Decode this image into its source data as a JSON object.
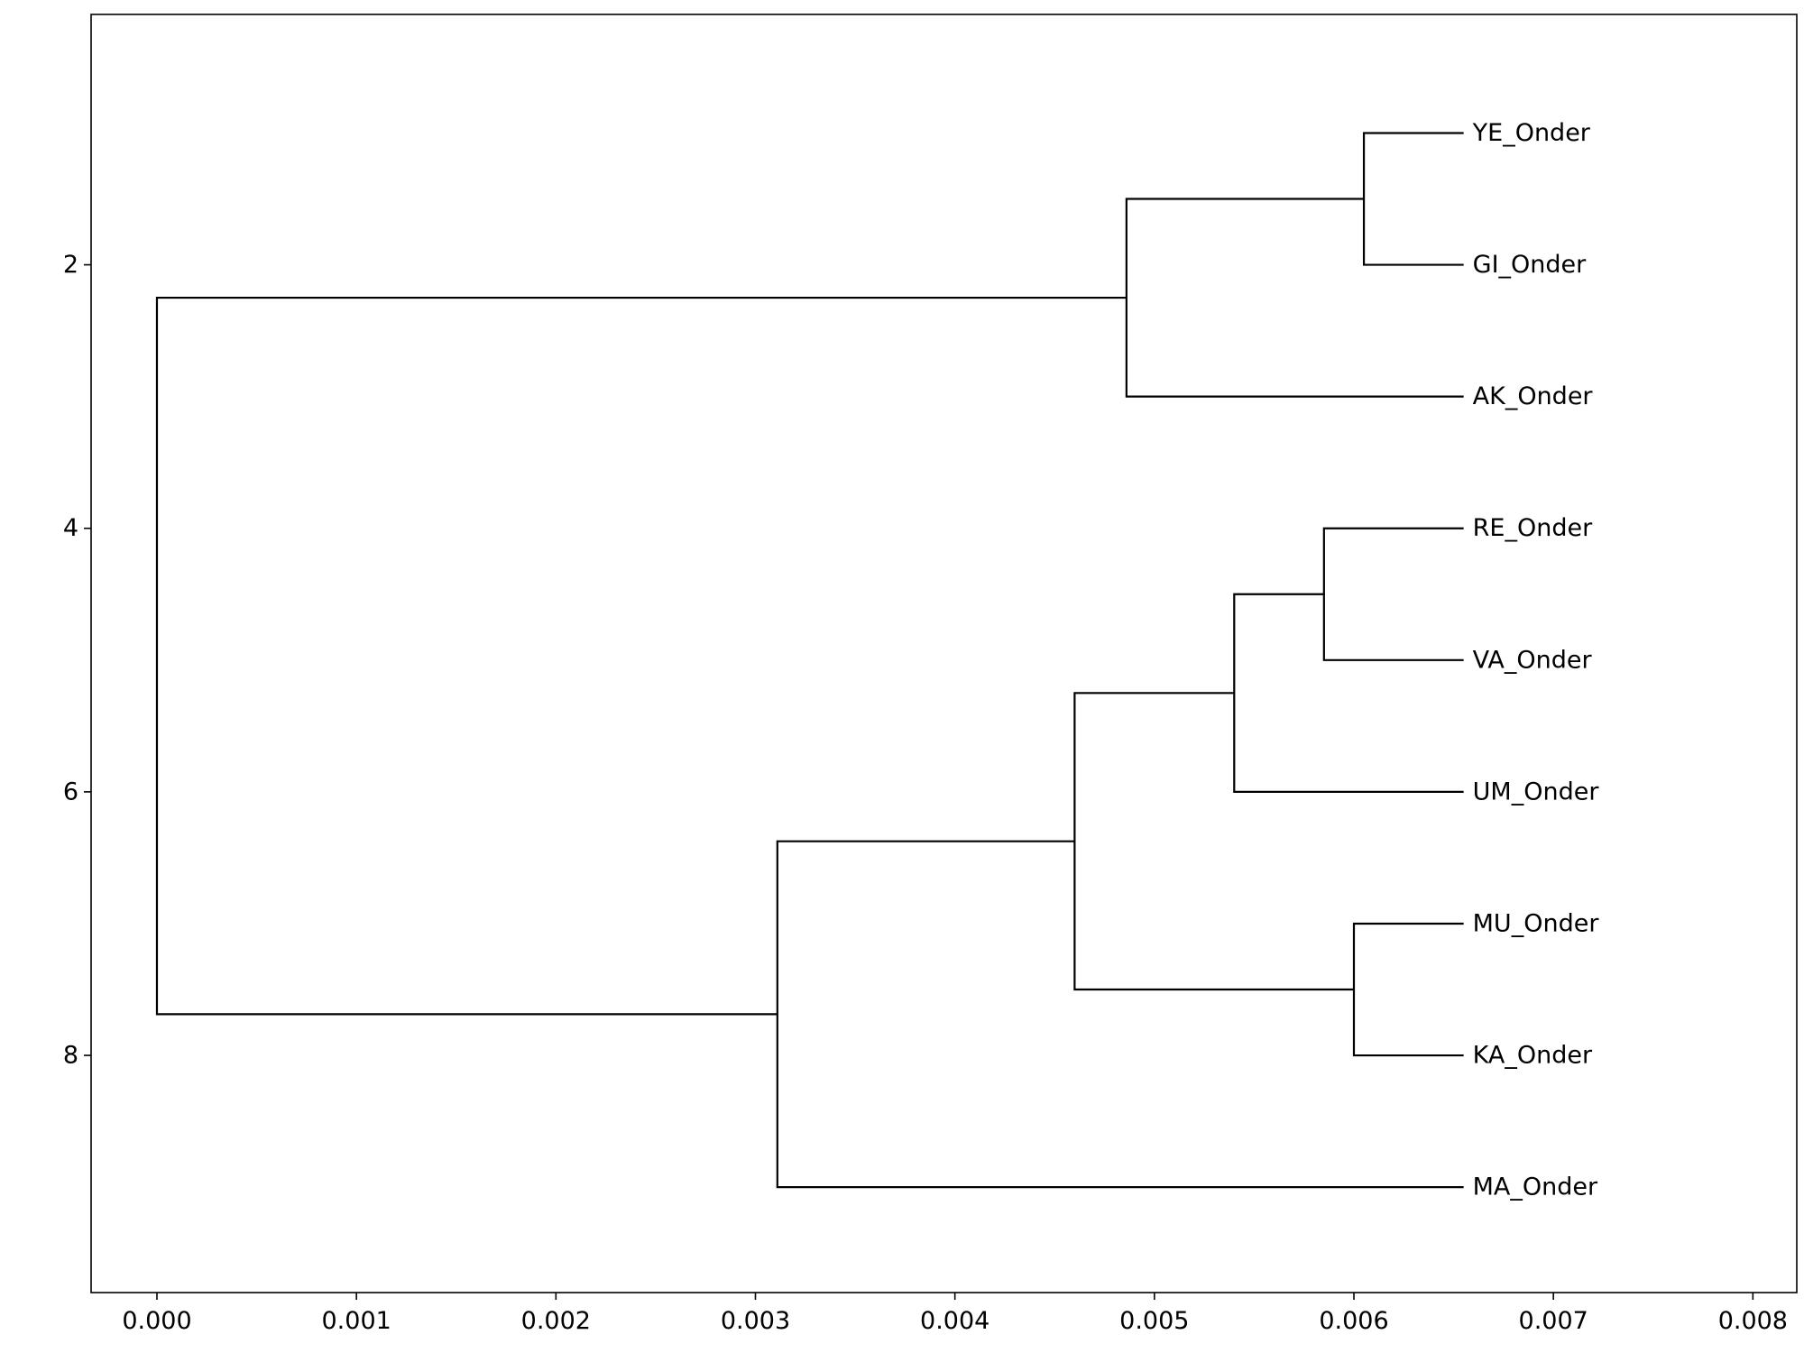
{
  "chart_data": {
    "type": "dendrogram",
    "orientation": "horizontal",
    "title": "",
    "xlabel": "",
    "ylabel": "",
    "xlim": [
      -0.00033,
      0.00822
    ],
    "ylim": [
      9.8,
      0.1
    ],
    "xticks": [
      0.0,
      0.001,
      0.002,
      0.003,
      0.004,
      0.005,
      0.006,
      0.007,
      0.008
    ],
    "xtick_labels": [
      "0.000",
      "0.001",
      "0.002",
      "0.003",
      "0.004",
      "0.005",
      "0.006",
      "0.007",
      "0.008"
    ],
    "yticks": [
      2,
      4,
      6,
      8
    ],
    "ytick_labels": [
      "2",
      "4",
      "6",
      "8"
    ],
    "leaf_tip_x": 0.00655,
    "leaves": [
      {
        "label": "YE_Onder",
        "y": 1
      },
      {
        "label": "GI_Onder",
        "y": 2
      },
      {
        "label": "AK_Onder",
        "y": 3
      },
      {
        "label": "RE_Onder",
        "y": 4
      },
      {
        "label": "VA_Onder",
        "y": 5
      },
      {
        "label": "UM_Onder",
        "y": 6
      },
      {
        "label": "MU_Onder",
        "y": 7
      },
      {
        "label": "KA_Onder",
        "y": 8
      },
      {
        "label": "MA_Onder",
        "y": 9
      }
    ],
    "merges": [
      {
        "x": 0.00605,
        "y_top": 1.0,
        "y_bottom": 2.0,
        "x_top": 0.00655,
        "x_bottom": 0.00655
      },
      {
        "x": 0.00486,
        "y_top": 1.5,
        "y_bottom": 3.0,
        "x_top": 0.00605,
        "x_bottom": 0.00655
      },
      {
        "x": 0.00585,
        "y_top": 4.0,
        "y_bottom": 5.0,
        "x_top": 0.00655,
        "x_bottom": 0.00655
      },
      {
        "x": 0.0054,
        "y_top": 4.5,
        "y_bottom": 6.0,
        "x_top": 0.00585,
        "x_bottom": 0.00655
      },
      {
        "x": 0.006,
        "y_top": 7.0,
        "y_bottom": 8.0,
        "x_top": 0.00655,
        "x_bottom": 0.00655
      },
      {
        "x": 0.0046,
        "y_top": 5.25,
        "y_bottom": 7.5,
        "x_top": 0.0054,
        "x_bottom": 0.006
      },
      {
        "x": 0.00311,
        "y_top": 6.375,
        "y_bottom": 9.0,
        "x_top": 0.0046,
        "x_bottom": 0.00655
      },
      {
        "x": 0.0,
        "y_top": 2.25,
        "y_bottom": 7.6875,
        "x_top": 0.00486,
        "x_bottom": 0.00311
      }
    ],
    "grid": false,
    "legend": "none"
  }
}
